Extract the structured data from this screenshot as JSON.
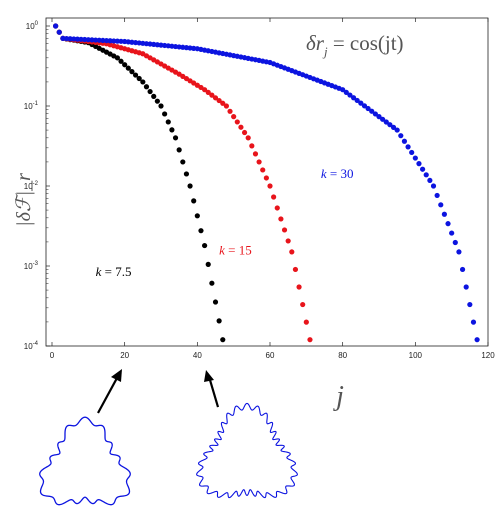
{
  "chart_data": {
    "type": "scatter",
    "xlabel": "j",
    "ylabel": "|δℱ|_r",
    "formula": {
      "lhs": "δr",
      "sub": "j",
      "rhs": " = cos(jt)"
    },
    "xlim": [
      0,
      120
    ],
    "ylim": [
      0.0001,
      1
    ],
    "yscale": "log",
    "grid": false,
    "x_ticks": [
      "0",
      "20",
      "40",
      "60",
      "80",
      "100",
      "120"
    ],
    "y_ticks": [
      {
        "base": "10",
        "exp": "0"
      },
      {
        "base": "10",
        "exp": "-1"
      },
      {
        "base": "10",
        "exp": "-2"
      },
      {
        "base": "10",
        "exp": "-3"
      },
      {
        "base": "10",
        "exp": "-4"
      }
    ],
    "series": [
      {
        "name": "k = 7.5",
        "k_label": "k",
        "k_value": "7.5",
        "color": "#000000",
        "label_pos": [
          12,
          0.00075
        ],
        "j_max": 47,
        "curve": [
          [
            1,
            1
          ],
          [
            3,
            0.7
          ],
          [
            10,
            0.62
          ],
          [
            18,
            0.4
          ],
          [
            25,
            0.2
          ],
          [
            30,
            0.1
          ],
          [
            34,
            0.04
          ],
          [
            38,
            0.01
          ],
          [
            42,
            0.0018
          ],
          [
            47,
            0.00012
          ]
        ]
      },
      {
        "name": "k = 15",
        "k_label": "k",
        "k_value": "15",
        "color": "#e8141b",
        "label_pos": [
          46,
          0.0014
        ],
        "j_max": 71,
        "curve": [
          [
            1,
            1
          ],
          [
            3,
            0.7
          ],
          [
            15,
            0.6
          ],
          [
            25,
            0.45
          ],
          [
            35,
            0.25
          ],
          [
            42,
            0.16
          ],
          [
            48,
            0.1
          ],
          [
            54,
            0.04
          ],
          [
            60,
            0.01
          ],
          [
            66,
            0.0015
          ],
          [
            71,
            0.00012
          ]
        ]
      },
      {
        "name": "k = 30",
        "k_label": "k",
        "k_value": "30",
        "color": "#0c14e0",
        "label_pos": [
          74,
          0.0125
        ],
        "j_max": 117,
        "curve": [
          [
            1,
            1
          ],
          [
            3,
            0.7
          ],
          [
            20,
            0.64
          ],
          [
            40,
            0.52
          ],
          [
            60,
            0.35
          ],
          [
            80,
            0.16
          ],
          [
            95,
            0.05
          ],
          [
            105,
            0.01
          ],
          [
            112,
            0.0015
          ],
          [
            117,
            0.00012
          ]
        ]
      }
    ],
    "insets": [
      {
        "color": "#0c14e0",
        "lobes": 3,
        "wiggles": 15
      },
      {
        "color": "#0c14e0",
        "lobes": 3,
        "wiggles": 30
      }
    ]
  }
}
